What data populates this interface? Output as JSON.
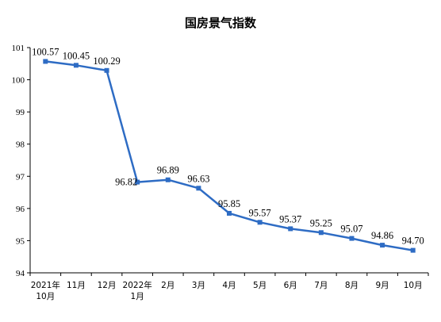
{
  "chart_data": {
    "type": "line",
    "title": "国房景气指数",
    "xlabel": "",
    "ylabel": "",
    "categories": [
      [
        "2021年",
        "10月"
      ],
      [
        "11月"
      ],
      [
        "12月"
      ],
      [
        "2022年",
        "1月"
      ],
      [
        "2月"
      ],
      [
        "3月"
      ],
      [
        "4月"
      ],
      [
        "5月"
      ],
      [
        "6月"
      ],
      [
        "7月"
      ],
      [
        "8月"
      ],
      [
        "9月"
      ],
      [
        "10月"
      ]
    ],
    "series": [
      {
        "values": [
          100.57,
          100.45,
          100.29,
          96.82,
          96.89,
          96.63,
          95.85,
          95.57,
          95.37,
          95.25,
          95.07,
          94.86,
          94.7
        ],
        "labels": [
          "100.57",
          "100.45",
          "100.29",
          "96.82",
          "96.89",
          "96.63",
          "95.85",
          "95.57",
          "95.37",
          "95.25",
          "95.07",
          "94.86",
          "94.70"
        ],
        "color": "#2e6cc4"
      }
    ],
    "ylim": [
      94,
      101
    ],
    "yticks": [
      94,
      95,
      96,
      97,
      98,
      99,
      100,
      101
    ],
    "grid": false,
    "legend": "none"
  }
}
